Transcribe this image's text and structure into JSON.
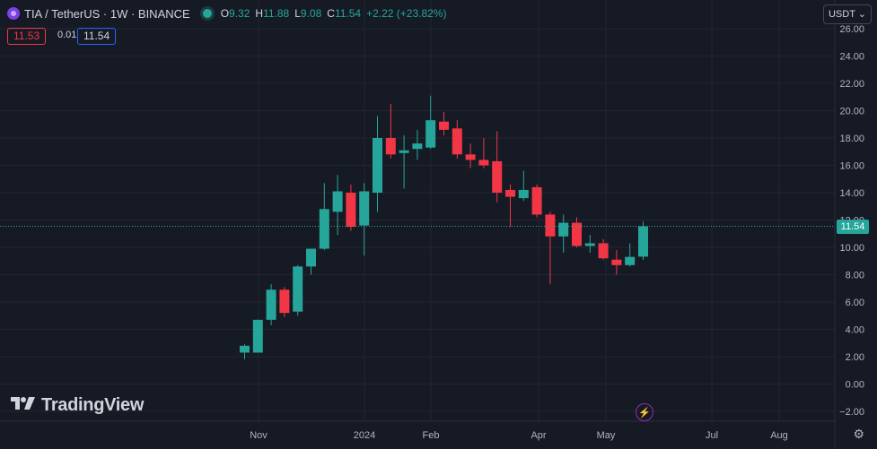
{
  "header": {
    "title": "TIA / TetherUS · 1W · BINANCE",
    "ohlc": [
      {
        "k": "O",
        "v": "9.32"
      },
      {
        "k": "H",
        "v": "11.88"
      },
      {
        "k": "L",
        "v": "9.08"
      },
      {
        "k": "C",
        "v": "11.54"
      }
    ],
    "change": "+2.22 (+23.82%)",
    "bid": "11.53",
    "spread": "0.01",
    "ask": "11.54",
    "currency": "USDT"
  },
  "watermark": "TradingView",
  "last_price_label": "11.54",
  "colors": {
    "background": "#161a25",
    "up": "#26a69a",
    "down": "#f23645",
    "grid": "#232631",
    "text": "#d1d4dc"
  },
  "chart_data": {
    "type": "candlestick",
    "interval": "1W",
    "ylim": [
      -2,
      26
    ],
    "y_ticks": [
      "26.00",
      "24.00",
      "22.00",
      "20.00",
      "18.00",
      "16.00",
      "14.00",
      "12.00",
      "10.00",
      "8.00",
      "6.00",
      "4.00",
      "2.00",
      "0.00",
      "−2.00"
    ],
    "x_ticks": [
      "Nov",
      "2024",
      "Feb",
      "Apr",
      "May",
      "Jul",
      "Aug"
    ],
    "grid": true,
    "candles": [
      {
        "o": 2.3,
        "h": 2.9,
        "l": 1.8,
        "c": 2.8
      },
      {
        "o": 2.3,
        "h": 4.7,
        "l": 2.3,
        "c": 4.7
      },
      {
        "o": 4.7,
        "h": 7.3,
        "l": 4.3,
        "c": 6.9
      },
      {
        "o": 6.9,
        "h": 7.1,
        "l": 4.9,
        "c": 5.2
      },
      {
        "o": 5.3,
        "h": 8.7,
        "l": 5.0,
        "c": 8.6
      },
      {
        "o": 8.6,
        "h": 9.9,
        "l": 8.0,
        "c": 9.9
      },
      {
        "o": 9.9,
        "h": 14.7,
        "l": 9.8,
        "c": 12.8
      },
      {
        "o": 12.6,
        "h": 15.3,
        "l": 10.9,
        "c": 14.1
      },
      {
        "o": 14.0,
        "h": 14.6,
        "l": 11.2,
        "c": 11.5
      },
      {
        "o": 11.6,
        "h": 14.7,
        "l": 9.4,
        "c": 14.1
      },
      {
        "o": 14.0,
        "h": 19.6,
        "l": 12.6,
        "c": 18.0
      },
      {
        "o": 18.0,
        "h": 20.5,
        "l": 16.5,
        "c": 16.8
      },
      {
        "o": 16.9,
        "h": 18.2,
        "l": 14.3,
        "c": 17.1
      },
      {
        "o": 17.2,
        "h": 18.6,
        "l": 16.4,
        "c": 17.6
      },
      {
        "o": 17.3,
        "h": 21.1,
        "l": 17.2,
        "c": 19.3
      },
      {
        "o": 19.2,
        "h": 19.9,
        "l": 18.2,
        "c": 18.6
      },
      {
        "o": 18.7,
        "h": 19.3,
        "l": 16.5,
        "c": 16.8
      },
      {
        "o": 16.8,
        "h": 17.6,
        "l": 15.8,
        "c": 16.4
      },
      {
        "o": 16.4,
        "h": 18.0,
        "l": 15.8,
        "c": 16.0
      },
      {
        "o": 16.3,
        "h": 18.5,
        "l": 13.3,
        "c": 14.0
      },
      {
        "o": 14.2,
        "h": 14.6,
        "l": 11.5,
        "c": 13.7
      },
      {
        "o": 13.6,
        "h": 15.6,
        "l": 13.4,
        "c": 14.2
      },
      {
        "o": 14.4,
        "h": 14.6,
        "l": 12.2,
        "c": 12.4
      },
      {
        "o": 12.4,
        "h": 12.6,
        "l": 7.3,
        "c": 10.8
      },
      {
        "o": 10.8,
        "h": 12.4,
        "l": 9.6,
        "c": 11.8
      },
      {
        "o": 11.8,
        "h": 12.2,
        "l": 10.0,
        "c": 10.1
      },
      {
        "o": 10.1,
        "h": 10.9,
        "l": 9.6,
        "c": 10.3
      },
      {
        "o": 10.3,
        "h": 10.6,
        "l": 9.1,
        "c": 9.2
      },
      {
        "o": 9.1,
        "h": 9.8,
        "l": 8.0,
        "c": 8.7
      },
      {
        "o": 8.7,
        "h": 10.3,
        "l": 8.6,
        "c": 9.3
      },
      {
        "o": 9.32,
        "h": 11.88,
        "l": 9.08,
        "c": 11.54
      }
    ]
  }
}
